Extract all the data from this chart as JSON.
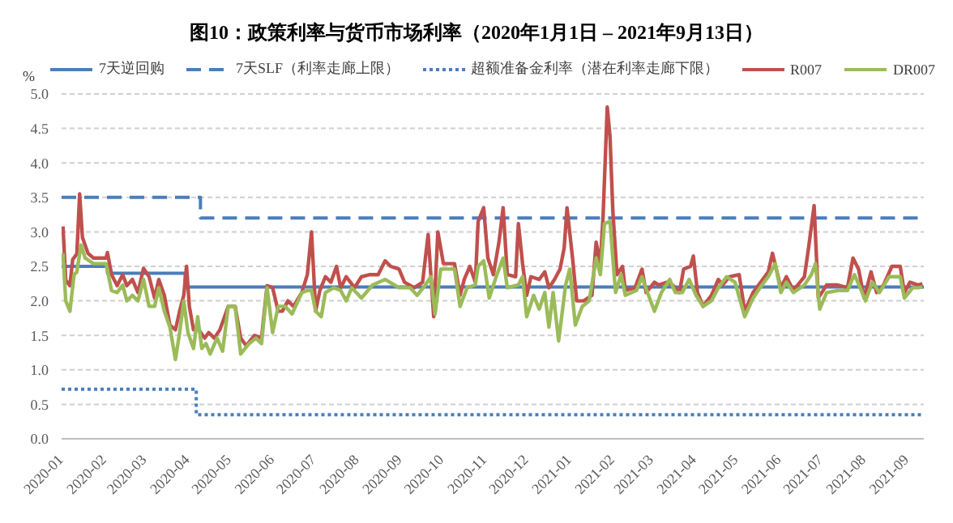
{
  "chart_data": {
    "type": "line",
    "title": "图10：政策利率与货币市场利率（2020年1月1日 – 2021年9月13日）",
    "ylabel": "%",
    "legend": "top",
    "grid": "y",
    "xlim": [
      "2020-01-01",
      "2021-09-13"
    ],
    "xticks": [
      "2020-01",
      "2020-02",
      "2020-03",
      "2020-04",
      "2020-05",
      "2020-06",
      "2020-07",
      "2020-08",
      "2020-09",
      "2020-10",
      "2020-11",
      "2020-12",
      "2021-01",
      "2021-02",
      "2021-03",
      "2021-04",
      "2021-05",
      "2021-06",
      "2021-07",
      "2021-08",
      "2021-09"
    ],
    "ylim": [
      0,
      5
    ],
    "yticks": [
      {
        "value": 0,
        "label": "0.0"
      },
      {
        "value": 0.5,
        "label": "0.5"
      },
      {
        "value": 1,
        "label": "1.0"
      },
      {
        "value": 1.5,
        "label": "1.5"
      },
      {
        "value": 2,
        "label": "2.0"
      },
      {
        "value": 2.5,
        "label": "2.5"
      },
      {
        "value": 3,
        "label": "3.0"
      },
      {
        "value": 3.5,
        "label": "3.5"
      },
      {
        "value": 4,
        "label": "4.0"
      },
      {
        "value": 4.5,
        "label": "4.5"
      },
      {
        "value": 5,
        "label": "5.0"
      }
    ],
    "series": [
      {
        "name": "7天逆回购",
        "type": "step",
        "color": "#4a7ebb",
        "line_style": "solid",
        "x": [
          "2020-01-01",
          "2020-02-03",
          "2020-03-30",
          "2021-09-13"
        ],
        "values": [
          2.5,
          2.4,
          2.2,
          2.2
        ]
      },
      {
        "name": "7天SLF（利率走廊上限）",
        "type": "step",
        "color": "#4a7ebb",
        "line_style": "dashed",
        "x": [
          "2020-01-01",
          "2020-04-10",
          "2021-09-13"
        ],
        "values": [
          3.5,
          3.2,
          3.2
        ]
      },
      {
        "name": "超额准备金利率（潜在利率走廊下限）",
        "type": "step",
        "color": "#4a7ebb",
        "line_style": "dotted",
        "x": [
          "2020-01-01",
          "2020-04-07",
          "2021-09-13"
        ],
        "values": [
          0.72,
          0.35,
          0.35
        ]
      },
      {
        "name": "R007",
        "type": "line",
        "color": "#c0504d",
        "line_style": "solid",
        "x": [
          "2020-01-02",
          "2020-01-04",
          "2020-01-07",
          "2020-01-09",
          "2020-01-12",
          "2020-01-14",
          "2020-01-16",
          "2020-01-20",
          "2020-01-24",
          "2020-02-02",
          "2020-02-03",
          "2020-02-06",
          "2020-02-10",
          "2020-02-14",
          "2020-02-17",
          "2020-02-21",
          "2020-02-25",
          "2020-02-29",
          "2020-03-04",
          "2020-03-08",
          "2020-03-11",
          "2020-03-15",
          "2020-03-19",
          "2020-03-23",
          "2020-03-26",
          "2020-03-29",
          "2020-03-31",
          "2020-04-02",
          "2020-04-05",
          "2020-04-09",
          "2020-04-13",
          "2020-04-16",
          "2020-04-20",
          "2020-04-24",
          "2020-04-30",
          "2020-05-05",
          "2020-05-09",
          "2020-05-13",
          "2020-05-19",
          "2020-05-24",
          "2020-05-28",
          "2020-06-01",
          "2020-06-05",
          "2020-06-08",
          "2020-06-12",
          "2020-06-16",
          "2020-06-22",
          "2020-06-26",
          "2020-06-29",
          "2020-07-02",
          "2020-07-05",
          "2020-07-09",
          "2020-07-13",
          "2020-07-17",
          "2020-07-20",
          "2020-07-24",
          "2020-07-30",
          "2020-08-04",
          "2020-08-10",
          "2020-08-16",
          "2020-08-21",
          "2020-08-25",
          "2020-08-31",
          "2020-09-04",
          "2020-09-11",
          "2020-09-17",
          "2020-09-21",
          "2020-09-25",
          "2020-09-28",
          "2020-10-02",
          "2020-10-10",
          "2020-10-14",
          "2020-10-17",
          "2020-10-21",
          "2020-10-25",
          "2020-10-27",
          "2020-10-31",
          "2020-11-03",
          "2020-11-07",
          "2020-11-11",
          "2020-11-14",
          "2020-11-17",
          "2020-11-23",
          "2020-11-25",
          "2020-11-28",
          "2020-12-01",
          "2020-12-04",
          "2020-12-10",
          "2020-12-14",
          "2020-12-17",
          "2020-12-21",
          "2020-12-25",
          "2020-12-28",
          "2020-12-30",
          "2021-01-03",
          "2021-01-06",
          "2021-01-11",
          "2021-01-17",
          "2021-01-20",
          "2021-01-23",
          "2021-01-25",
          "2021-01-28",
          "2021-01-30",
          "2021-02-01",
          "2021-02-04",
          "2021-02-08",
          "2021-02-10",
          "2021-02-17",
          "2021-02-22",
          "2021-02-25",
          "2021-03-03",
          "2021-03-06",
          "2021-03-12",
          "2021-03-16",
          "2021-03-21",
          "2021-03-24",
          "2021-03-29",
          "2021-03-31",
          "2021-04-03",
          "2021-04-07",
          "2021-04-13",
          "2021-04-18",
          "2021-04-21",
          "2021-04-26",
          "2021-05-03",
          "2021-05-07",
          "2021-05-13",
          "2021-05-17",
          "2021-05-24",
          "2021-05-27",
          "2021-06-02",
          "2021-06-06",
          "2021-06-11",
          "2021-06-19",
          "2021-06-22",
          "2021-06-26",
          "2021-06-29",
          "2021-07-05",
          "2021-07-13",
          "2021-07-20",
          "2021-07-24",
          "2021-07-28",
          "2021-08-01",
          "2021-08-06",
          "2021-08-10",
          "2021-08-15",
          "2021-08-21",
          "2021-08-27",
          "2021-08-30",
          "2021-09-03",
          "2021-09-09",
          "2021-09-12"
        ],
        "values": [
          3.08,
          2.3,
          2.22,
          2.6,
          2.68,
          3.55,
          2.92,
          2.69,
          2.62,
          2.62,
          2.7,
          2.38,
          2.22,
          2.38,
          2.22,
          2.31,
          2.12,
          2.47,
          2.35,
          2.04,
          2.31,
          2.08,
          1.65,
          1.58,
          1.85,
          2.08,
          2.5,
          1.92,
          1.58,
          1.58,
          1.46,
          1.54,
          1.46,
          1.58,
          1.92,
          1.92,
          1.46,
          1.35,
          1.5,
          1.46,
          2.22,
          2.19,
          1.85,
          1.85,
          2.0,
          1.92,
          2.12,
          2.38,
          3.0,
          1.85,
          2.15,
          2.35,
          2.27,
          2.5,
          2.19,
          2.35,
          2.19,
          2.35,
          2.38,
          2.38,
          2.58,
          2.5,
          2.46,
          2.27,
          2.19,
          2.27,
          2.96,
          1.77,
          3.0,
          2.54,
          2.54,
          2.08,
          2.31,
          2.5,
          2.27,
          3.15,
          3.35,
          2.62,
          2.38,
          2.85,
          3.35,
          2.38,
          2.35,
          3.12,
          2.54,
          2.08,
          2.35,
          2.31,
          2.42,
          2.19,
          2.31,
          2.46,
          2.77,
          3.35,
          2.62,
          2.0,
          2.0,
          2.08,
          2.85,
          2.54,
          3.23,
          4.81,
          4.38,
          3.31,
          2.38,
          2.5,
          2.15,
          2.19,
          2.46,
          2.12,
          2.27,
          2.23,
          2.27,
          2.23,
          2.12,
          2.46,
          2.5,
          2.65,
          2.12,
          1.92,
          2.08,
          2.31,
          2.23,
          2.35,
          2.38,
          1.85,
          2.12,
          2.23,
          2.42,
          2.69,
          2.19,
          2.35,
          2.15,
          2.35,
          2.77,
          3.38,
          2.04,
          2.23,
          2.23,
          2.19,
          2.62,
          2.46,
          2.04,
          2.42,
          2.12,
          2.23,
          2.5,
          2.5,
          2.12,
          2.27,
          2.23,
          2.25
        ]
      },
      {
        "name": "DR007",
        "type": "line",
        "color": "#9bbb59",
        "line_style": "solid",
        "x": [
          "2020-01-02",
          "2020-01-04",
          "2020-01-07",
          "2020-01-10",
          "2020-01-12",
          "2020-01-15",
          "2020-01-18",
          "2020-01-24",
          "2020-02-02",
          "2020-02-06",
          "2020-02-10",
          "2020-02-14",
          "2020-02-17",
          "2020-02-21",
          "2020-02-25",
          "2020-02-29",
          "2020-03-04",
          "2020-03-08",
          "2020-03-11",
          "2020-03-15",
          "2020-03-19",
          "2020-03-23",
          "2020-03-26",
          "2020-03-29",
          "2020-04-01",
          "2020-04-05",
          "2020-04-08",
          "2020-04-11",
          "2020-04-14",
          "2020-04-17",
          "2020-04-22",
          "2020-04-26",
          "2020-04-30",
          "2020-05-05",
          "2020-05-09",
          "2020-05-15",
          "2020-05-20",
          "2020-05-24",
          "2020-05-28",
          "2020-06-01",
          "2020-06-05",
          "2020-06-10",
          "2020-06-15",
          "2020-06-22",
          "2020-06-26",
          "2020-06-29",
          "2020-07-02",
          "2020-07-06",
          "2020-07-09",
          "2020-07-15",
          "2020-07-20",
          "2020-07-24",
          "2020-07-28",
          "2020-08-04",
          "2020-08-12",
          "2020-08-21",
          "2020-08-31",
          "2020-09-08",
          "2020-09-13",
          "2020-09-19",
          "2020-09-23",
          "2020-09-26",
          "2020-09-30",
          "2020-10-10",
          "2020-10-14",
          "2020-10-19",
          "2020-10-25",
          "2020-10-27",
          "2020-10-31",
          "2020-11-04",
          "2020-11-09",
          "2020-11-14",
          "2020-11-17",
          "2020-11-25",
          "2020-11-28",
          "2020-12-01",
          "2020-12-06",
          "2020-12-10",
          "2020-12-14",
          "2020-12-17",
          "2020-12-20",
          "2020-12-24",
          "2020-12-29",
          "2021-01-01",
          "2021-01-05",
          "2021-01-10",
          "2021-01-15",
          "2021-01-20",
          "2021-01-23",
          "2021-01-26",
          "2021-01-30",
          "2021-02-01",
          "2021-02-03",
          "2021-02-07",
          "2021-02-10",
          "2021-02-18",
          "2021-02-22",
          "2021-02-26",
          "2021-03-03",
          "2021-03-08",
          "2021-03-14",
          "2021-03-18",
          "2021-03-23",
          "2021-03-28",
          "2021-04-02",
          "2021-04-07",
          "2021-04-13",
          "2021-04-18",
          "2021-04-24",
          "2021-04-30",
          "2021-05-07",
          "2021-05-13",
          "2021-05-18",
          "2021-05-24",
          "2021-05-29",
          "2021-06-02",
          "2021-06-06",
          "2021-06-11",
          "2021-06-19",
          "2021-06-24",
          "2021-06-27",
          "2021-06-30",
          "2021-07-05",
          "2021-07-13",
          "2021-07-20",
          "2021-07-25",
          "2021-07-30",
          "2021-08-02",
          "2021-08-07",
          "2021-08-12",
          "2021-08-19",
          "2021-08-27",
          "2021-08-30",
          "2021-09-05",
          "2021-09-09",
          "2021-09-12"
        ],
        "values": [
          2.69,
          2.0,
          1.85,
          2.38,
          2.42,
          2.81,
          2.62,
          2.54,
          2.54,
          2.15,
          2.12,
          2.23,
          2.0,
          2.08,
          2.0,
          2.31,
          1.92,
          1.92,
          2.19,
          1.85,
          1.62,
          1.15,
          1.54,
          2.0,
          1.54,
          1.31,
          1.77,
          1.31,
          1.38,
          1.23,
          1.46,
          1.27,
          1.92,
          1.92,
          1.23,
          1.38,
          1.46,
          1.38,
          2.19,
          1.54,
          1.92,
          1.92,
          1.81,
          2.12,
          2.15,
          2.15,
          1.85,
          1.77,
          2.12,
          2.19,
          2.15,
          2.0,
          2.19,
          2.04,
          2.23,
          2.31,
          2.19,
          2.19,
          2.08,
          2.23,
          2.35,
          1.81,
          2.46,
          2.46,
          1.92,
          2.19,
          2.23,
          2.5,
          2.58,
          2.04,
          2.35,
          2.62,
          2.19,
          2.23,
          2.35,
          1.77,
          2.08,
          1.88,
          2.12,
          1.62,
          2.12,
          1.42,
          2.23,
          2.46,
          1.65,
          1.92,
          2.0,
          2.62,
          2.38,
          3.12,
          3.15,
          2.62,
          2.12,
          2.38,
          2.08,
          2.15,
          2.35,
          2.12,
          1.85,
          2.12,
          2.31,
          2.12,
          2.12,
          2.31,
          2.08,
          1.92,
          2.0,
          2.19,
          2.35,
          2.27,
          1.77,
          2.04,
          2.19,
          2.35,
          2.54,
          2.12,
          2.27,
          2.12,
          2.23,
          2.38,
          2.54,
          1.88,
          2.12,
          2.15,
          2.15,
          2.38,
          2.15,
          2.0,
          2.27,
          2.12,
          2.35,
          2.35,
          2.04,
          2.19,
          2.19,
          2.2
        ]
      }
    ]
  }
}
